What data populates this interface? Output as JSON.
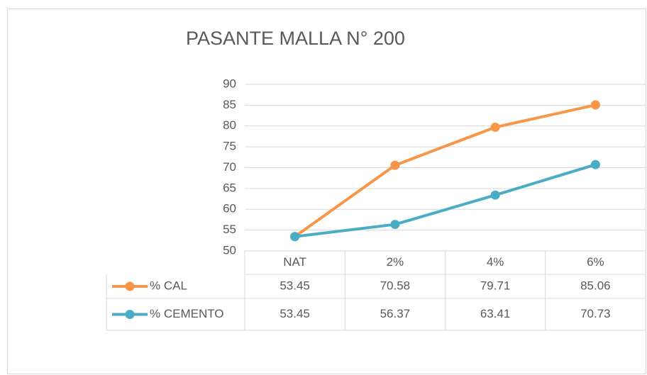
{
  "chart_data": {
    "type": "line",
    "title": "PASANTE MALLA N° 200",
    "categories": [
      "NAT",
      "2%",
      "4%",
      "6%"
    ],
    "series": [
      {
        "name": "% CAL",
        "color": "#f79646",
        "values": [
          53.45,
          70.58,
          79.71,
          85.06
        ]
      },
      {
        "name": "% CEMENTO",
        "color": "#4bacc6",
        "values": [
          53.45,
          56.37,
          63.41,
          70.73
        ]
      }
    ],
    "ylim": [
      50,
      90
    ],
    "yticks": [
      50,
      55,
      60,
      65,
      70,
      75,
      80,
      85,
      90
    ],
    "grid": true,
    "data_table": true
  }
}
